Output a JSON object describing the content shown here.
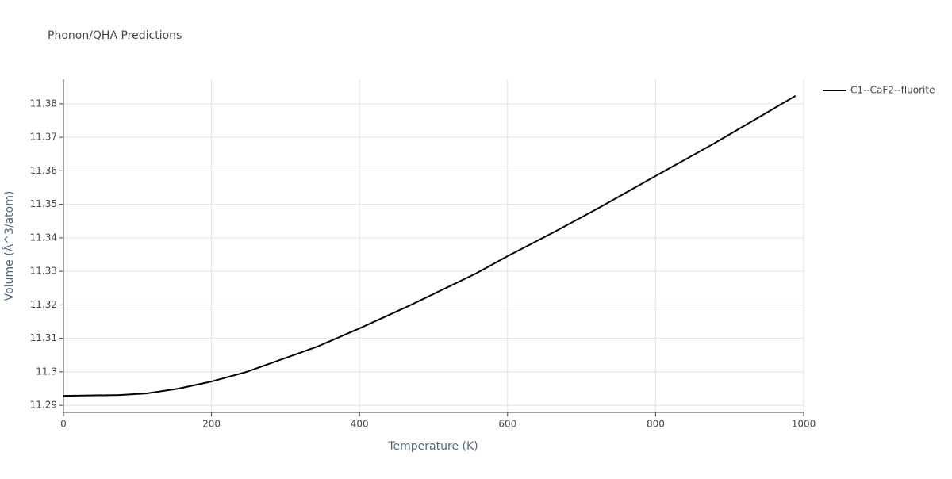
{
  "chart_data": {
    "type": "line",
    "title": "Phonon/QHA Predictions",
    "x_label": "Temperature (K)",
    "y_label": "Volume (Å^3/atom)",
    "x": [
      0,
      75,
      112,
      155,
      200,
      247,
      289,
      343,
      400,
      466,
      557,
      600,
      664,
      718,
      800,
      879,
      989
    ],
    "series": [
      {
        "name": "C1--CaF2--fluorite",
        "color": "#000000",
        "values": [
          11.29284,
          11.29308,
          11.29355,
          11.29497,
          11.29711,
          11.29995,
          11.30326,
          11.30753,
          11.31298,
          11.31961,
          11.32932,
          11.33453,
          11.34187,
          11.34827,
          11.35845,
          11.36816,
          11.38237
        ]
      }
    ],
    "xlim": [
      0,
      1000
    ],
    "xticks": [
      0,
      200,
      400,
      600,
      800,
      1000
    ],
    "ylim": [
      11.2879,
      11.3873
    ],
    "yticks": [
      11.29,
      11.3,
      11.31,
      11.32,
      11.33,
      11.34,
      11.35,
      11.36,
      11.37,
      11.38
    ],
    "grid": true,
    "legend": "right"
  }
}
